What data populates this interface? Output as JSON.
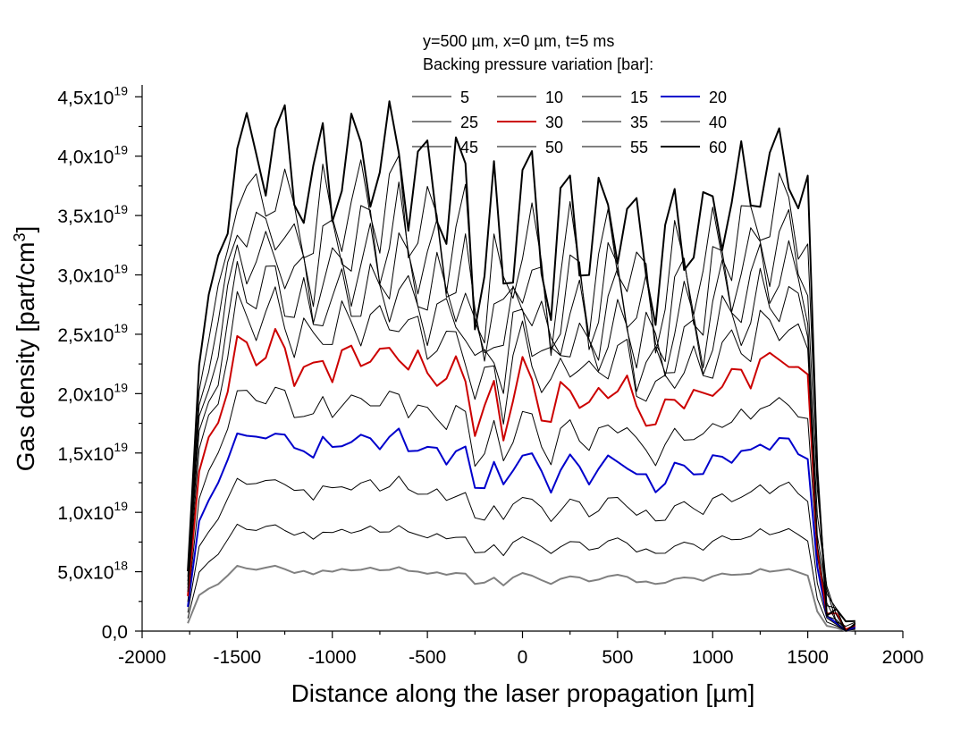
{
  "chart_data": {
    "type": "line",
    "title": "",
    "annotation_lines": [
      "y=500 µm, x=0 µm, t=5 ms",
      "Backing pressure variation [bar]:"
    ],
    "xlabel": "Distance along the laser propagation [µm]",
    "ylabel_main": "Gas density [part/cm",
    "ylabel_sup": "3",
    "ylabel_close": "]",
    "xlim": [
      -2000,
      2000
    ],
    "ylim": [
      0,
      4.6e+19
    ],
    "x_ticks": [
      -2000,
      -1500,
      -1000,
      -500,
      0,
      500,
      1000,
      1500,
      2000
    ],
    "x_tick_labels": [
      "-2000",
      "-1500",
      "-1000",
      "-500",
      "0",
      "500",
      "1000",
      "1500",
      "2000"
    ],
    "y_ticks": [
      0,
      5e+18,
      1e+19,
      1.5e+19,
      2e+19,
      2.5e+19,
      3e+19,
      3.5e+19,
      4e+19,
      4.5e+19
    ],
    "y_tick_mantissa": [
      "0,0",
      "5,0x10",
      "1,0x10",
      "1,5x10",
      "2,0x10",
      "2,5x10",
      "3,0x10",
      "3,5x10",
      "4,0x10",
      "4,5x10"
    ],
    "y_tick_exponent": [
      "",
      "18",
      "19",
      "19",
      "19",
      "19",
      "19",
      "19",
      "19",
      "19"
    ],
    "grid": false,
    "legend_position": "top",
    "x": [
      -1760,
      -1700,
      -1650,
      -1600,
      -1550,
      -1500,
      -1450,
      -1400,
      -1350,
      -1300,
      -1250,
      -1200,
      -1150,
      -1100,
      -1050,
      -1000,
      -950,
      -900,
      -850,
      -800,
      -750,
      -700,
      -650,
      -600,
      -550,
      -500,
      -450,
      -400,
      -350,
      -300,
      -250,
      -200,
      -150,
      -100,
      -50,
      0,
      50,
      100,
      150,
      200,
      250,
      300,
      350,
      400,
      450,
      500,
      550,
      600,
      650,
      700,
      750,
      800,
      850,
      900,
      950,
      1000,
      1050,
      1100,
      1150,
      1200,
      1250,
      1300,
      1350,
      1400,
      1450,
      1500,
      1550,
      1600,
      1650,
      1700,
      1750
    ],
    "base_shape": [
      0.12,
      0.55,
      0.65,
      0.72,
      0.85,
      1.0,
      0.96,
      0.94,
      0.97,
      1.0,
      0.95,
      0.89,
      0.92,
      0.87,
      0.93,
      0.91,
      0.95,
      0.93,
      0.94,
      0.97,
      0.93,
      0.94,
      0.98,
      0.92,
      0.91,
      0.88,
      0.9,
      0.86,
      0.89,
      0.88,
      0.72,
      0.74,
      0.82,
      0.7,
      0.82,
      0.89,
      0.85,
      0.78,
      0.72,
      0.8,
      0.84,
      0.82,
      0.76,
      0.79,
      0.84,
      0.86,
      0.83,
      0.75,
      0.76,
      0.72,
      0.74,
      0.8,
      0.82,
      0.81,
      0.77,
      0.84,
      0.88,
      0.86,
      0.87,
      0.88,
      0.95,
      0.91,
      0.93,
      0.95,
      0.9,
      0.85,
      0.3,
      0.08,
      0.05,
      0.0,
      0.02
    ],
    "series": [
      {
        "name": "5",
        "peak": 5.5e+18,
        "color": "#808080",
        "width": 2
      },
      {
        "name": "10",
        "peak": 9e+18,
        "color": "#000000",
        "width": 1
      },
      {
        "name": "15",
        "peak": 1.3e+19,
        "color": "#000000",
        "width": 1
      },
      {
        "name": "20",
        "peak": 1.7e+19,
        "color": "#0000cc",
        "width": 2
      },
      {
        "name": "25",
        "peak": 2.05e+19,
        "color": "#000000",
        "width": 1
      },
      {
        "name": "30",
        "peak": 2.45e+19,
        "color": "#cc0000",
        "width": 2
      },
      {
        "name": "35",
        "peak": 2.75e+19,
        "color": "#000000",
        "width": 1
      },
      {
        "name": "40",
        "peak": 3e+19,
        "color": "#000000",
        "width": 1
      },
      {
        "name": "45",
        "peak": 3.25e+19,
        "color": "#000000",
        "width": 1
      },
      {
        "name": "50",
        "peak": 3.5e+19,
        "color": "#000000",
        "width": 1
      },
      {
        "name": "55",
        "peak": 3.8e+19,
        "color": "#000000",
        "width": 1
      },
      {
        "name": "60",
        "peak": 4.2e+19,
        "color": "#000000",
        "width": 2
      }
    ]
  }
}
